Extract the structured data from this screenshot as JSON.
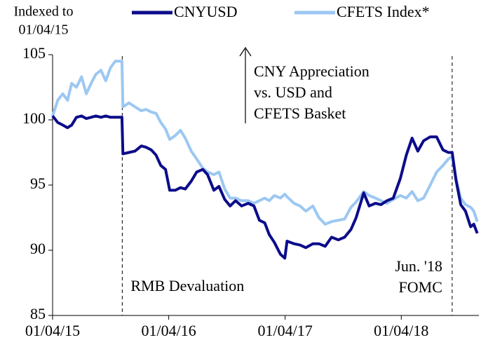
{
  "chart_data": {
    "type": "line",
    "y_label_lines": [
      "Indexed to",
      "01/04/15"
    ],
    "x": [
      "01/04/15",
      "01/20/15",
      "02/05/15",
      "02/20/15",
      "03/05/15",
      "03/20/15",
      "04/05/15",
      "04/20/15",
      "05/05/15",
      "05/20/15",
      "06/05/15",
      "06/20/15",
      "07/05/15",
      "07/20/15",
      "08/10/15",
      "08/13/15",
      "09/01/15",
      "09/20/15",
      "10/10/15",
      "10/25/15",
      "11/10/15",
      "11/25/15",
      "12/10/15",
      "12/25/15",
      "01/07/16",
      "01/25/16",
      "02/10/16",
      "02/25/16",
      "03/15/16",
      "04/01/16",
      "04/20/16",
      "05/05/16",
      "05/25/16",
      "06/10/16",
      "06/28/16",
      "07/15/16",
      "08/01/16",
      "08/20/16",
      "09/10/16",
      "09/28/16",
      "10/15/16",
      "11/01/16",
      "11/15/16",
      "12/01/16",
      "12/20/16",
      "01/03/17",
      "01/10/17",
      "02/01/17",
      "02/20/17",
      "03/10/17",
      "04/01/17",
      "04/20/17",
      "05/10/17",
      "05/30/17",
      "06/20/17",
      "07/10/17",
      "07/30/17",
      "08/15/17",
      "09/08/17",
      "09/25/17",
      "10/15/17",
      "11/01/17",
      "11/20/17",
      "12/10/17",
      "01/01/18",
      "01/20/18",
      "02/07/18",
      "02/25/18",
      "03/15/18",
      "04/05/18",
      "04/25/18",
      "05/15/18",
      "06/01/18",
      "06/13/18",
      "06/25/18",
      "07/10/18",
      "07/25/18",
      "08/10/18",
      "08/20/18",
      "08/31/18"
    ],
    "series": [
      {
        "name": "CNYUSD",
        "color": "#0c0c8a",
        "width": 4,
        "values": [
          100.3,
          99.8,
          99.6,
          99.4,
          99.6,
          100.2,
          100.3,
          100.1,
          100.2,
          100.3,
          100.2,
          100.3,
          100.2,
          100.2,
          100.2,
          97.4,
          97.5,
          97.6,
          98.0,
          97.9,
          97.7,
          97.3,
          96.5,
          96.2,
          94.6,
          94.6,
          94.8,
          94.7,
          95.3,
          96.0,
          96.2,
          95.8,
          94.6,
          94.9,
          93.9,
          93.4,
          93.8,
          93.4,
          93.6,
          93.4,
          92.3,
          92.1,
          91.2,
          90.6,
          89.7,
          89.4,
          90.7,
          90.5,
          90.4,
          90.2,
          90.5,
          90.5,
          90.3,
          91.0,
          90.8,
          91.0,
          91.6,
          92.5,
          94.4,
          93.4,
          93.6,
          93.5,
          93.8,
          94.0,
          95.5,
          97.3,
          98.6,
          97.6,
          98.4,
          98.7,
          98.7,
          97.7,
          97.5,
          97.5,
          95.4,
          93.5,
          93.0,
          91.8,
          92.0,
          91.3
        ]
      },
      {
        "name": "CFETS Index*",
        "color": "#9cc8f2",
        "width": 4,
        "values": [
          100.3,
          101.5,
          102.0,
          101.5,
          102.8,
          102.5,
          103.3,
          102.0,
          102.8,
          103.5,
          103.8,
          103.0,
          104.0,
          104.5,
          104.5,
          101.0,
          101.3,
          101.0,
          100.7,
          100.8,
          100.6,
          100.5,
          99.8,
          99.3,
          98.5,
          98.8,
          99.2,
          98.6,
          97.6,
          97.0,
          96.3,
          96.0,
          95.8,
          96.0,
          94.7,
          94.0,
          94.0,
          93.8,
          93.8,
          93.6,
          93.8,
          94.0,
          93.8,
          94.2,
          94.0,
          94.3,
          94.1,
          93.6,
          93.4,
          93.0,
          93.4,
          92.5,
          92.0,
          92.2,
          92.3,
          92.4,
          93.3,
          93.7,
          94.5,
          94.2,
          94.0,
          93.8,
          93.6,
          93.9,
          94.2,
          94.0,
          94.5,
          93.8,
          94.0,
          95.0,
          96.0,
          96.5,
          97.0,
          97.2,
          95.5,
          94.0,
          93.5,
          93.3,
          93.0,
          92.2
        ]
      }
    ],
    "xlim": [
      "01/04/15",
      "09/05/18"
    ],
    "xticks": [
      "01/04/15",
      "01/04/16",
      "01/04/17",
      "01/04/18"
    ],
    "ylim": [
      85,
      105
    ],
    "yticks": [
      85,
      90,
      95,
      100,
      105
    ],
    "annotations": [
      {
        "x": "08/11/15",
        "lines": [
          "RMB Devaluation"
        ]
      },
      {
        "x": "06/13/18",
        "lines": [
          "Jun. '18",
          "FOMC"
        ]
      }
    ],
    "arrow_note": [
      "CNY Appreciation",
      "vs. USD and",
      "CFETS Basket"
    ]
  }
}
